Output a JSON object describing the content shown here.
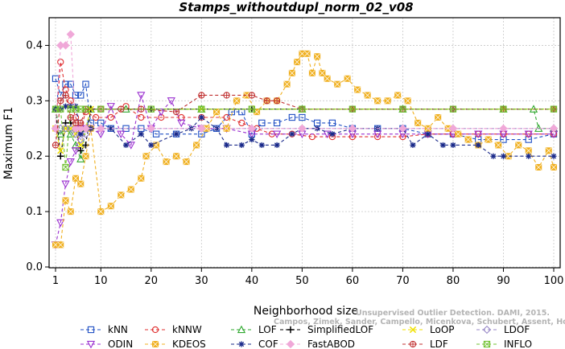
{
  "chart_data": {
    "type": "line",
    "title": "Stamps_withoutdupl_norm_02_v08",
    "xlabel": "Neighborhood size",
    "ylabel": "Maximum F1",
    "xlim": [
      1,
      100
    ],
    "ylim": [
      0,
      0.45
    ],
    "x_ticks": [
      "1",
      "10",
      "20",
      "30",
      "40",
      "50",
      "60",
      "70",
      "80",
      "90",
      "100"
    ],
    "y_ticks": [
      "0.0",
      "0.1",
      "0.2",
      "0.3",
      "0.4"
    ],
    "grid": true,
    "legend_position": "bottom",
    "watermark": {
      "line1": "Unsupervised Outlier Detection. DAMI, 2015.",
      "line2": "Campos, Zimek, Sander, Campello, Micenkova, Schubert, Assent, Houle"
    },
    "series": [
      {
        "name": "kNN",
        "color": "#1f4fc4",
        "marker": "square",
        "points": [
          [
            1,
            0.34
          ],
          [
            2,
            0.31
          ],
          [
            3,
            0.33
          ],
          [
            4,
            0.33
          ],
          [
            5,
            0.31
          ],
          [
            6,
            0.31
          ],
          [
            7,
            0.33
          ],
          [
            8,
            0.26
          ],
          [
            10,
            0.26
          ],
          [
            12,
            0.25
          ],
          [
            15,
            0.25
          ],
          [
            18,
            0.25
          ],
          [
            21,
            0.24
          ],
          [
            25,
            0.24
          ],
          [
            30,
            0.24
          ],
          [
            33,
            0.25
          ],
          [
            36,
            0.28
          ],
          [
            38,
            0.28
          ],
          [
            40,
            0.24
          ],
          [
            42,
            0.26
          ],
          [
            45,
            0.26
          ],
          [
            48,
            0.27
          ],
          [
            50,
            0.27
          ],
          [
            53,
            0.26
          ],
          [
            56,
            0.26
          ],
          [
            60,
            0.25
          ],
          [
            65,
            0.25
          ],
          [
            70,
            0.25
          ],
          [
            75,
            0.24
          ],
          [
            80,
            0.24
          ],
          [
            85,
            0.23
          ],
          [
            90,
            0.23
          ],
          [
            95,
            0.23
          ],
          [
            100,
            0.24
          ]
        ]
      },
      {
        "name": "kNNW",
        "color": "#e03030",
        "marker": "circle",
        "points": [
          [
            1,
            0.25
          ],
          [
            2,
            0.37
          ],
          [
            3,
            0.32
          ],
          [
            4,
            0.3
          ],
          [
            5,
            0.27
          ],
          [
            6,
            0.25
          ],
          [
            7,
            0.28
          ],
          [
            9,
            0.27
          ],
          [
            12,
            0.27
          ],
          [
            15,
            0.29
          ],
          [
            18,
            0.27
          ],
          [
            22,
            0.27
          ],
          [
            26,
            0.27
          ],
          [
            30,
            0.27
          ],
          [
            35,
            0.27
          ],
          [
            38,
            0.26
          ],
          [
            41,
            0.25
          ],
          [
            44,
            0.24
          ],
          [
            48,
            0.24
          ],
          [
            52,
            0.235
          ],
          [
            56,
            0.235
          ],
          [
            60,
            0.235
          ],
          [
            65,
            0.235
          ],
          [
            70,
            0.235
          ],
          [
            75,
            0.24
          ],
          [
            80,
            0.24
          ],
          [
            85,
            0.24
          ],
          [
            90,
            0.24
          ],
          [
            95,
            0.24
          ],
          [
            100,
            0.24
          ]
        ]
      },
      {
        "name": "LOF",
        "color": "#2ea82e",
        "marker": "triangle-up",
        "points": [
          [
            1,
            0.285
          ],
          [
            2,
            0.24
          ],
          [
            3,
            0.25
          ],
          [
            4,
            0.24
          ],
          [
            5,
            0.22
          ],
          [
            6,
            0.195
          ],
          [
            7,
            0.25
          ],
          [
            8,
            0.285
          ],
          [
            15,
            0.285
          ],
          [
            30,
            0.285
          ],
          [
            50,
            0.285
          ],
          [
            70,
            0.285
          ],
          [
            90,
            0.285
          ],
          [
            96,
            0.285
          ],
          [
            97,
            0.25
          ],
          [
            100,
            0.25
          ]
        ]
      },
      {
        "name": "SimplifiedLOF",
        "color": "#000000",
        "marker": "plus",
        "points": [
          [
            1,
            0.285
          ],
          [
            2,
            0.2
          ],
          [
            3,
            0.26
          ],
          [
            4,
            0.26
          ],
          [
            5,
            0.25
          ],
          [
            6,
            0.21
          ],
          [
            7,
            0.22
          ],
          [
            8,
            0.285
          ],
          [
            20,
            0.285
          ],
          [
            40,
            0.285
          ],
          [
            60,
            0.285
          ],
          [
            80,
            0.285
          ],
          [
            100,
            0.285
          ]
        ]
      },
      {
        "name": "LoOP",
        "color": "#f0e000",
        "marker": "cross",
        "points": [
          [
            1,
            0.25
          ],
          [
            2,
            0.21
          ],
          [
            3,
            0.25
          ],
          [
            4,
            0.25
          ],
          [
            5,
            0.24
          ],
          [
            6,
            0.22
          ],
          [
            7,
            0.25
          ],
          [
            8,
            0.285
          ],
          [
            30,
            0.285
          ],
          [
            60,
            0.285
          ],
          [
            90,
            0.285
          ],
          [
            100,
            0.285
          ]
        ]
      },
      {
        "name": "LDOF",
        "color": "#9a8ac8",
        "marker": "diamond",
        "points": [
          [
            1,
            0.25
          ],
          [
            2,
            0.25
          ],
          [
            3,
            0.25
          ],
          [
            4,
            0.25
          ],
          [
            5,
            0.24
          ],
          [
            6,
            0.23
          ],
          [
            7,
            0.24
          ],
          [
            8,
            0.25
          ],
          [
            20,
            0.25
          ],
          [
            40,
            0.25
          ],
          [
            60,
            0.25
          ],
          [
            80,
            0.25
          ],
          [
            100,
            0.25
          ]
        ]
      },
      {
        "name": "ODIN",
        "color": "#9b30d0",
        "marker": "triangle-down",
        "points": [
          [
            1,
            0.04
          ],
          [
            2,
            0.08
          ],
          [
            3,
            0.15
          ],
          [
            4,
            0.19
          ],
          [
            5,
            0.21
          ],
          [
            6,
            0.25
          ],
          [
            7,
            0.25
          ],
          [
            8,
            0.25
          ],
          [
            10,
            0.24
          ],
          [
            12,
            0.29
          ],
          [
            14,
            0.24
          ],
          [
            16,
            0.22
          ],
          [
            18,
            0.31
          ],
          [
            20,
            0.25
          ],
          [
            22,
            0.28
          ],
          [
            24,
            0.3
          ],
          [
            26,
            0.26
          ],
          [
            30,
            0.25
          ],
          [
            35,
            0.25
          ],
          [
            40,
            0.24
          ],
          [
            45,
            0.24
          ],
          [
            50,
            0.24
          ],
          [
            55,
            0.24
          ],
          [
            60,
            0.24
          ],
          [
            65,
            0.24
          ],
          [
            70,
            0.24
          ],
          [
            75,
            0.24
          ],
          [
            80,
            0.24
          ],
          [
            85,
            0.24
          ],
          [
            90,
            0.24
          ],
          [
            95,
            0.24
          ],
          [
            100,
            0.24
          ]
        ]
      },
      {
        "name": "KDEOS",
        "color": "#f0b020",
        "marker": "square-x",
        "points": [
          [
            1,
            0.04
          ],
          [
            2,
            0.04
          ],
          [
            3,
            0.12
          ],
          [
            4,
            0.1
          ],
          [
            5,
            0.16
          ],
          [
            6,
            0.15
          ],
          [
            7,
            0.2
          ],
          [
            8,
            0.25
          ],
          [
            10,
            0.1
          ],
          [
            12,
            0.11
          ],
          [
            14,
            0.13
          ],
          [
            16,
            0.14
          ],
          [
            18,
            0.16
          ],
          [
            19,
            0.2
          ],
          [
            21,
            0.22
          ],
          [
            23,
            0.19
          ],
          [
            25,
            0.2
          ],
          [
            27,
            0.19
          ],
          [
            29,
            0.22
          ],
          [
            31,
            0.25
          ],
          [
            33,
            0.28
          ],
          [
            35,
            0.25
          ],
          [
            37,
            0.3
          ],
          [
            39,
            0.31
          ],
          [
            41,
            0.28
          ],
          [
            43,
            0.3
          ],
          [
            45,
            0.3
          ],
          [
            47,
            0.33
          ],
          [
            48,
            0.35
          ],
          [
            49,
            0.37
          ],
          [
            50,
            0.385
          ],
          [
            51,
            0.385
          ],
          [
            52,
            0.35
          ],
          [
            53,
            0.38
          ],
          [
            54,
            0.35
          ],
          [
            55,
            0.34
          ],
          [
            57,
            0.33
          ],
          [
            59,
            0.34
          ],
          [
            61,
            0.32
          ],
          [
            63,
            0.31
          ],
          [
            65,
            0.3
          ],
          [
            67,
            0.3
          ],
          [
            69,
            0.31
          ],
          [
            71,
            0.3
          ],
          [
            73,
            0.26
          ],
          [
            75,
            0.25
          ],
          [
            77,
            0.27
          ],
          [
            79,
            0.25
          ],
          [
            81,
            0.24
          ],
          [
            83,
            0.23
          ],
          [
            85,
            0.22
          ],
          [
            87,
            0.23
          ],
          [
            89,
            0.22
          ],
          [
            91,
            0.2
          ],
          [
            93,
            0.22
          ],
          [
            95,
            0.21
          ],
          [
            97,
            0.18
          ],
          [
            99,
            0.21
          ],
          [
            100,
            0.18
          ]
        ]
      },
      {
        "name": "COF",
        "color": "#1a2a8a",
        "marker": "asterisk",
        "points": [
          [
            1,
            0.285
          ],
          [
            2,
            0.285
          ],
          [
            3,
            0.29
          ],
          [
            4,
            0.29
          ],
          [
            5,
            0.29
          ],
          [
            6,
            0.24
          ],
          [
            7,
            0.25
          ],
          [
            8,
            0.25
          ],
          [
            12,
            0.25
          ],
          [
            15,
            0.22
          ],
          [
            18,
            0.24
          ],
          [
            20,
            0.22
          ],
          [
            25,
            0.24
          ],
          [
            28,
            0.25
          ],
          [
            30,
            0.27
          ],
          [
            33,
            0.25
          ],
          [
            35,
            0.22
          ],
          [
            38,
            0.22
          ],
          [
            40,
            0.23
          ],
          [
            42,
            0.22
          ],
          [
            45,
            0.22
          ],
          [
            48,
            0.24
          ],
          [
            50,
            0.25
          ],
          [
            53,
            0.25
          ],
          [
            56,
            0.24
          ],
          [
            60,
            0.25
          ],
          [
            65,
            0.25
          ],
          [
            70,
            0.25
          ],
          [
            72,
            0.22
          ],
          [
            75,
            0.24
          ],
          [
            78,
            0.22
          ],
          [
            80,
            0.22
          ],
          [
            85,
            0.22
          ],
          [
            88,
            0.2
          ],
          [
            90,
            0.2
          ],
          [
            95,
            0.2
          ],
          [
            100,
            0.2
          ]
        ]
      },
      {
        "name": "FastABOD",
        "color": "#f0a8d8",
        "marker": "diamond-fill",
        "points": [
          [
            1,
            0.25
          ],
          [
            2,
            0.4
          ],
          [
            3,
            0.4
          ],
          [
            4,
            0.42
          ],
          [
            5,
            0.25
          ],
          [
            6,
            0.25
          ],
          [
            7,
            0.25
          ],
          [
            10,
            0.25
          ],
          [
            20,
            0.25
          ],
          [
            30,
            0.25
          ],
          [
            40,
            0.25
          ],
          [
            50,
            0.25
          ],
          [
            60,
            0.25
          ],
          [
            70,
            0.25
          ],
          [
            80,
            0.25
          ],
          [
            90,
            0.25
          ],
          [
            100,
            0.25
          ]
        ]
      },
      {
        "name": "LDF",
        "color": "#c03030",
        "marker": "circle-plus",
        "points": [
          [
            1,
            0.22
          ],
          [
            2,
            0.3
          ],
          [
            3,
            0.31
          ],
          [
            4,
            0.27
          ],
          [
            5,
            0.26
          ],
          [
            6,
            0.26
          ],
          [
            7,
            0.285
          ],
          [
            10,
            0.285
          ],
          [
            14,
            0.285
          ],
          [
            18,
            0.285
          ],
          [
            25,
            0.28
          ],
          [
            30,
            0.31
          ],
          [
            35,
            0.31
          ],
          [
            40,
            0.31
          ],
          [
            43,
            0.3
          ],
          [
            45,
            0.3
          ],
          [
            50,
            0.285
          ],
          [
            60,
            0.285
          ],
          [
            70,
            0.285
          ],
          [
            80,
            0.285
          ],
          [
            90,
            0.285
          ],
          [
            100,
            0.285
          ]
        ]
      },
      {
        "name": "INFLO",
        "color": "#70c030",
        "marker": "square-cross",
        "points": [
          [
            1,
            0.285
          ],
          [
            2,
            0.285
          ],
          [
            3,
            0.18
          ],
          [
            4,
            0.285
          ],
          [
            5,
            0.285
          ],
          [
            6,
            0.285
          ],
          [
            7,
            0.285
          ],
          [
            10,
            0.285
          ],
          [
            20,
            0.285
          ],
          [
            30,
            0.285
          ],
          [
            40,
            0.285
          ],
          [
            50,
            0.285
          ],
          [
            60,
            0.285
          ],
          [
            70,
            0.285
          ],
          [
            80,
            0.285
          ],
          [
            90,
            0.285
          ],
          [
            100,
            0.285
          ]
        ]
      }
    ]
  }
}
